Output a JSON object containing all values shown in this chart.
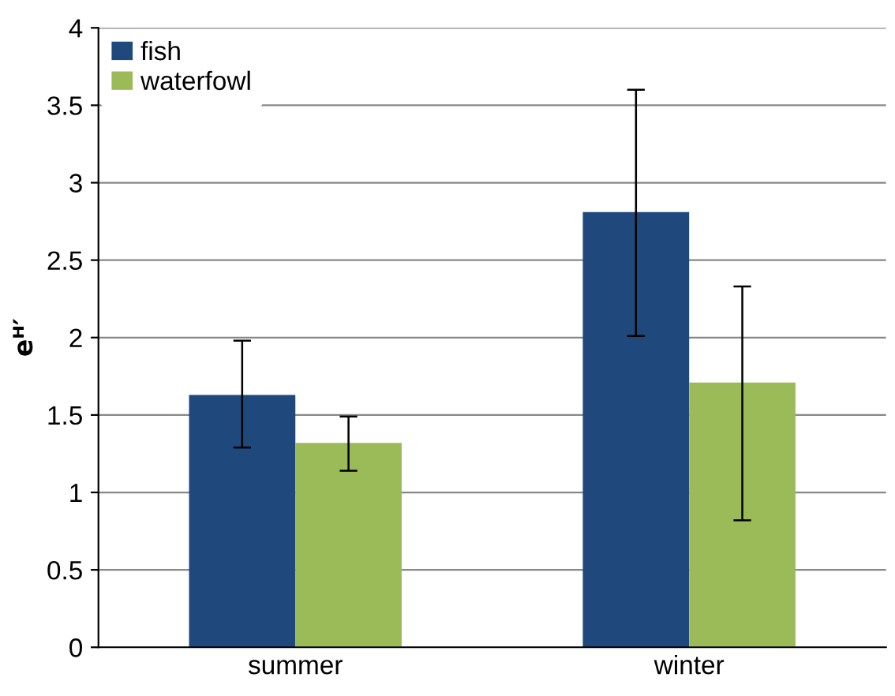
{
  "chart_data": {
    "type": "bar",
    "ylabel": "eᴴ′",
    "categories": [
      "summer",
      "winter"
    ],
    "series": [
      {
        "name": "fish",
        "color": "#1f497d",
        "values": [
          1.63,
          2.81
        ],
        "errors": [
          [
            1.29,
            1.98
          ],
          [
            2.01,
            3.6
          ]
        ]
      },
      {
        "name": "waterfowl",
        "color": "#9bbb59",
        "values": [
          1.32,
          1.71
        ],
        "errors": [
          [
            1.14,
            1.49
          ],
          [
            0.82,
            2.33
          ]
        ]
      }
    ],
    "ylim": [
      0,
      4
    ],
    "yticks": [
      0,
      0.5,
      1,
      1.5,
      2,
      2.5,
      3,
      3.5,
      4
    ],
    "grid": "y",
    "legend": "top left"
  }
}
